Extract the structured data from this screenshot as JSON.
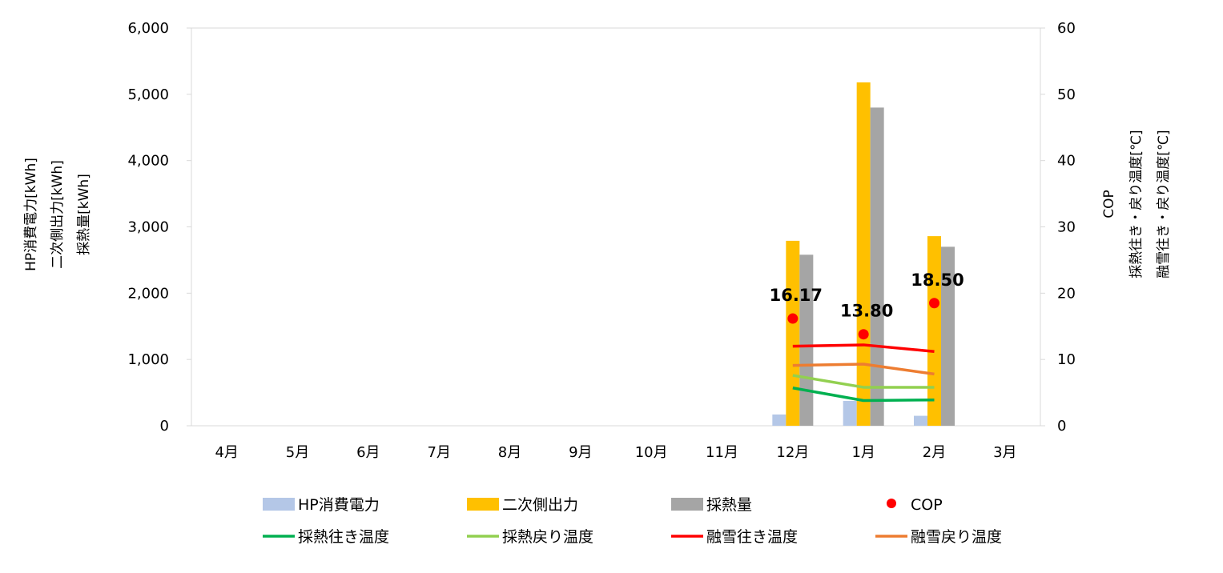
{
  "chart_data": {
    "type": "bar",
    "categories": [
      "4月",
      "5月",
      "6月",
      "7月",
      "8月",
      "9月",
      "10月",
      "11月",
      "12月",
      "1月",
      "2月",
      "3月"
    ],
    "ylabel_left": [
      "HP消費電力[kWh]",
      "二次側出力[kWh]",
      "採熱量[kWh]"
    ],
    "ylabel_right": [
      "COP",
      "採熱往き・戻り温度[℃]",
      "融雪往き・戻り温度[℃]"
    ],
    "y_left": {
      "min": 0,
      "max": 6000,
      "step": 1000,
      "tick_labels": [
        "0",
        "1,000",
        "2,000",
        "3,000",
        "4,000",
        "5,000",
        "6,000"
      ]
    },
    "y_right": {
      "min": 0,
      "max": 60,
      "step": 10,
      "tick_labels": [
        "0",
        "10",
        "20",
        "30",
        "40",
        "50",
        "60"
      ]
    },
    "grid": false,
    "legend_position": "bottom",
    "bar_series": [
      {
        "name": "HP消費電力",
        "color": "#b4c7e7",
        "axis": "left",
        "values": [
          null,
          null,
          null,
          null,
          null,
          null,
          null,
          null,
          170,
          375,
          150,
          null
        ]
      },
      {
        "name": "二次側出力",
        "color": "#ffc000",
        "axis": "left",
        "values": [
          null,
          null,
          null,
          null,
          null,
          null,
          null,
          null,
          2790,
          5180,
          2860,
          null
        ]
      },
      {
        "name": "採熱量",
        "color": "#a5a5a5",
        "axis": "left",
        "values": [
          null,
          null,
          null,
          null,
          null,
          null,
          null,
          null,
          2580,
          4800,
          2700,
          null
        ]
      }
    ],
    "point_series": [
      {
        "name": "COP",
        "color": "#ff0000",
        "axis": "right",
        "values": [
          null,
          null,
          null,
          null,
          null,
          null,
          null,
          null,
          16.17,
          13.8,
          18.5,
          null
        ],
        "data_labels": [
          "",
          "",
          "",
          "",
          "",
          "",
          "",
          "",
          "16.17",
          "13.80",
          "18.50",
          ""
        ]
      }
    ],
    "line_series": [
      {
        "name": "採熱往き温度",
        "color": "#00b050",
        "axis": "right",
        "values": [
          null,
          null,
          null,
          null,
          null,
          null,
          null,
          null,
          5.7,
          3.8,
          3.9,
          null
        ]
      },
      {
        "name": "採熱戻り温度",
        "color": "#92d050",
        "axis": "right",
        "values": [
          null,
          null,
          null,
          null,
          null,
          null,
          null,
          null,
          7.6,
          5.8,
          5.8,
          null
        ]
      },
      {
        "name": "融雪往き温度",
        "color": "#ff0000",
        "axis": "right",
        "values": [
          null,
          null,
          null,
          null,
          null,
          null,
          null,
          null,
          12.0,
          12.2,
          11.2,
          null
        ]
      },
      {
        "name": "融雪戻り温度",
        "color": "#ed7d31",
        "axis": "right",
        "values": [
          null,
          null,
          null,
          null,
          null,
          null,
          null,
          null,
          9.1,
          9.3,
          7.8,
          null
        ]
      }
    ],
    "legend": [
      {
        "label": "HP消費電力",
        "marker": "box",
        "color": "#b4c7e7"
      },
      {
        "label": "二次側出力",
        "marker": "box",
        "color": "#ffc000"
      },
      {
        "label": "採熱量",
        "marker": "box",
        "color": "#a5a5a5"
      },
      {
        "label": "COP",
        "marker": "dot",
        "color": "#ff0000"
      },
      {
        "label": "採熱往き温度",
        "marker": "line",
        "color": "#00b050"
      },
      {
        "label": "採熱戻り温度",
        "marker": "line",
        "color": "#92d050"
      },
      {
        "label": "融雪往き温度",
        "marker": "line",
        "color": "#ff0000"
      },
      {
        "label": "融雪戻り温度",
        "marker": "line",
        "color": "#ed7d31"
      }
    ]
  }
}
